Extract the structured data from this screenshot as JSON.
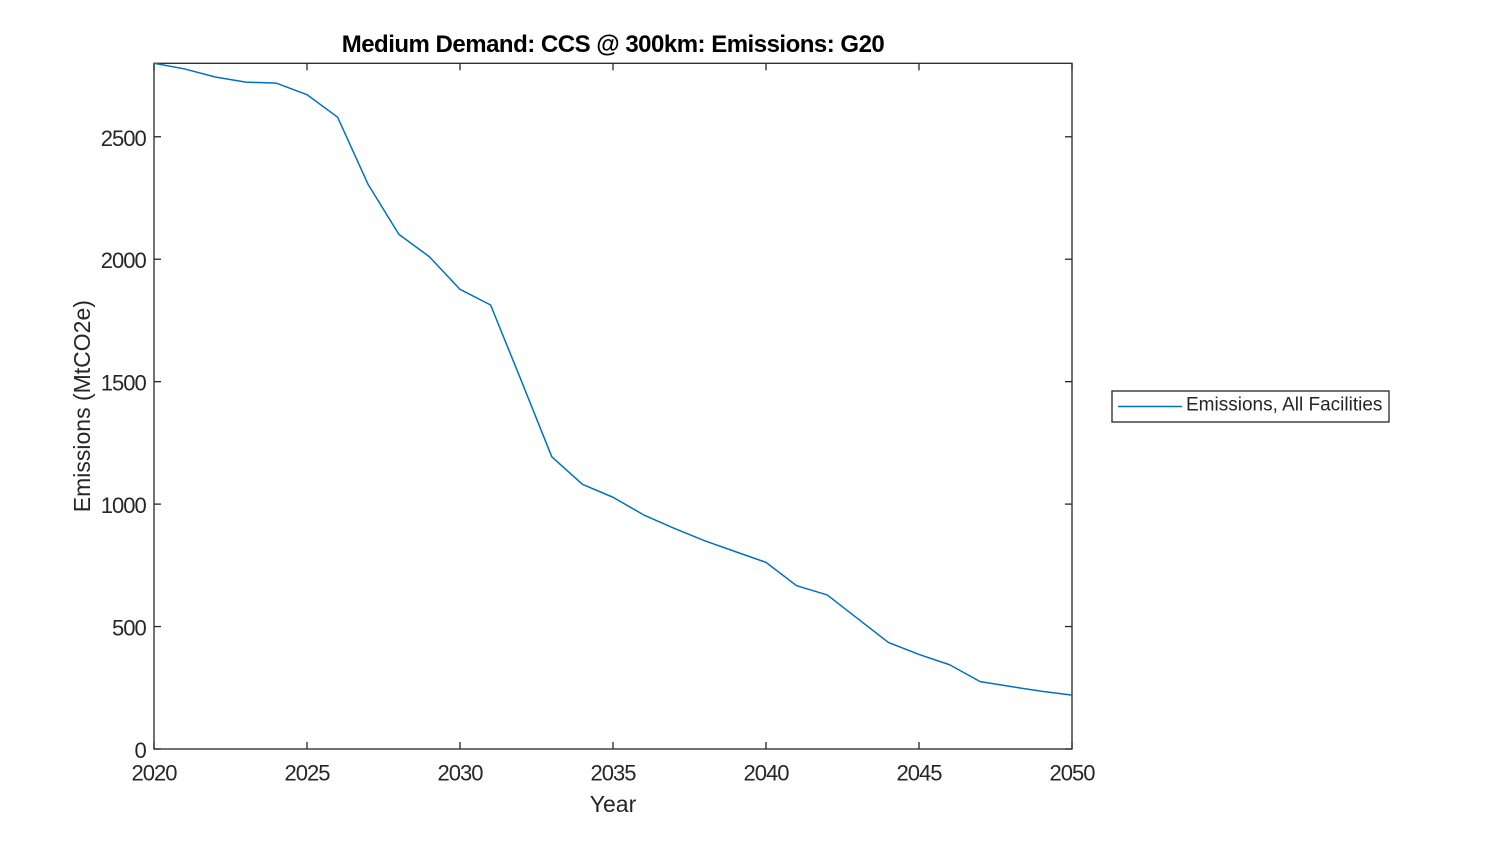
{
  "chart_data": {
    "type": "line",
    "title": "Medium Demand: CCS @ 300km: Emissions: G20",
    "xlabel": "Year",
    "ylabel": "Emissions (MtCO2e)",
    "xlim": [
      2020,
      2050
    ],
    "ylim": [
      0,
      2800
    ],
    "xticks": [
      "2020",
      "2025",
      "2030",
      "2035",
      "2040",
      "2045",
      "2050"
    ],
    "xtick_values": [
      2020,
      2025,
      2030,
      2035,
      2040,
      2045,
      2050
    ],
    "yticks": [
      "0",
      "500",
      "1000",
      "1500",
      "2000",
      "2500"
    ],
    "ytick_values": [
      0,
      500,
      1000,
      1500,
      2000,
      2500
    ],
    "grid": false,
    "legend_position": "right-outside",
    "series": [
      {
        "name": "Emissions, All Facilities",
        "color": "#0072BD",
        "x": [
          2020,
          2021,
          2022,
          2023,
          2024,
          2025,
          2026,
          2027,
          2028,
          2029,
          2030,
          2031,
          2032,
          2033,
          2034,
          2035,
          2036,
          2037,
          2038,
          2039,
          2040,
          2041,
          2042,
          2043,
          2044,
          2045,
          2046,
          2047,
          2048,
          2049,
          2050
        ],
        "values": [
          2800,
          2777,
          2744,
          2723,
          2719,
          2672,
          2580,
          2305,
          2102,
          2010,
          1877,
          1813,
          1505,
          1193,
          1081,
          1028,
          956,
          901,
          850,
          806,
          762,
          667,
          629,
          532,
          435,
          386,
          344,
          275,
          255,
          236,
          220
        ]
      }
    ]
  },
  "colors": {
    "line": "#0072BD",
    "axis": "#262626",
    "title": "#000000",
    "background": "#ffffff",
    "legend_border": "#262626"
  }
}
